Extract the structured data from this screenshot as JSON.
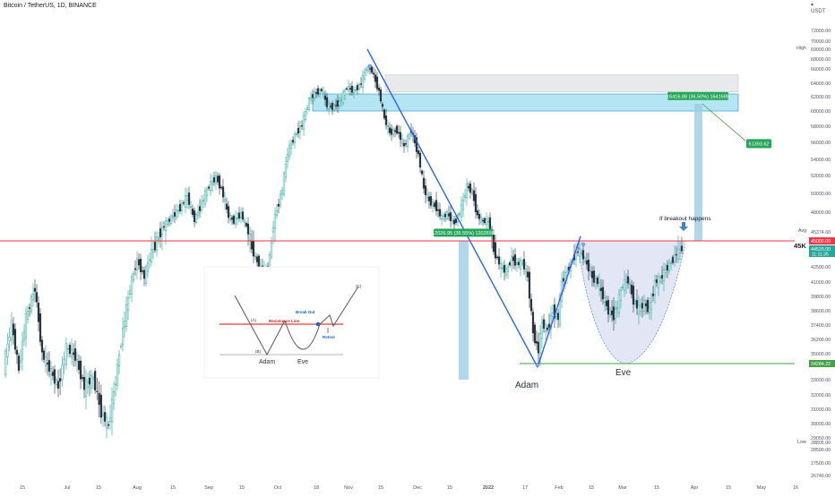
{
  "header": {
    "symbol": "Bitcoin / TetherUS, 1D, BINANCE",
    "unit_currency": "USDT",
    "unit_caret": "▾"
  },
  "colors": {
    "up": "#26a69a",
    "down": "#26303d",
    "resistance": "#f23645",
    "trend": "#2962ff",
    "zone_fill": "#a8dff0",
    "zone_stroke": "#3aa0c8",
    "grey_zone": "#d9dadc",
    "support": "#43a047",
    "target_label": "#26a65b",
    "cup_fill": "#d8def2"
  },
  "chart_data": {
    "type": "candlestick",
    "title": "Bitcoin / TetherUS, 1D, BINANCE",
    "y_unit": "USDT",
    "ylim": [
      26000,
      74000
    ],
    "y_ticks": [
      "72000.00",
      "70000.00",
      "69000.00",
      "68000.00",
      "66000.00",
      "64000.00",
      "62000.00",
      "60000.00",
      "58000.00",
      "56000.00",
      "54000.00",
      "52000.00",
      "50000.00",
      "48000.00",
      "45374.60",
      "45000.00",
      "44520.00",
      "42500.00",
      "41000.00",
      "39800.00",
      "38600.00",
      "37400.00",
      "36200.00",
      "35000.00",
      "34284.22",
      "33000.00",
      "32000.00",
      "31000.00",
      "30000.00",
      "29050.00",
      "28805.00",
      "28500.00",
      "27500.00",
      "26740.00"
    ],
    "y_tick_values": [
      72000,
      70000,
      69000,
      68000,
      66000,
      64000,
      62000,
      60000,
      58000,
      56000,
      54000,
      52000,
      50000,
      48000,
      45374.6,
      45000,
      44520,
      42500,
      41000,
      39800,
      38600,
      37400,
      36200,
      35000,
      34284.22,
      33000,
      32000,
      31000,
      30000,
      29050,
      28805,
      28500,
      27500,
      26740
    ],
    "x_ticks": [
      "15",
      "Jul",
      "15",
      "Aug",
      "15",
      "Sep",
      "15",
      "Oct",
      "18",
      "Nov",
      "15",
      "Dec",
      "15",
      "2022",
      "17",
      "Feb",
      "15",
      "Mar",
      "15",
      "Apr",
      "15",
      "May",
      "16"
    ],
    "x_tick_values": [
      25,
      75,
      110,
      153,
      193,
      233,
      270,
      310,
      353,
      389,
      425,
      466,
      502,
      545,
      586,
      624,
      660,
      695,
      733,
      775,
      813,
      850,
      888
    ],
    "axis_markers": {
      "high_label": "High",
      "low_label": "Low",
      "avg_label": "Avg",
      "level_45k": "45K",
      "countdown": "11:11:35"
    },
    "price_path": [
      [
        5,
        34000
      ],
      [
        14,
        37500
      ],
      [
        22,
        33800
      ],
      [
        30,
        38000
      ],
      [
        40,
        40500
      ],
      [
        48,
        35000
      ],
      [
        58,
        33600
      ],
      [
        66,
        32500
      ],
      [
        75,
        35500
      ],
      [
        85,
        34800
      ],
      [
        95,
        32500
      ],
      [
        105,
        33200
      ],
      [
        114,
        30800
      ],
      [
        122,
        29800
      ],
      [
        130,
        33000
      ],
      [
        138,
        37000
      ],
      [
        146,
        40500
      ],
      [
        154,
        43200
      ],
      [
        162,
        41500
      ],
      [
        170,
        44200
      ],
      [
        178,
        45200
      ],
      [
        186,
        46500
      ],
      [
        194,
        47500
      ],
      [
        202,
        48500
      ],
      [
        210,
        49700
      ],
      [
        218,
        47000
      ],
      [
        226,
        49000
      ],
      [
        234,
        50800
      ],
      [
        242,
        51800
      ],
      [
        248,
        50500
      ],
      [
        256,
        47500
      ],
      [
        262,
        46800
      ],
      [
        270,
        47800
      ],
      [
        278,
        45500
      ],
      [
        286,
        43500
      ],
      [
        294,
        42000
      ],
      [
        300,
        42300
      ],
      [
        308,
        47500
      ],
      [
        316,
        50500
      ],
      [
        322,
        54800
      ],
      [
        330,
        56800
      ],
      [
        338,
        58200
      ],
      [
        346,
        61500
      ],
      [
        352,
        62500
      ],
      [
        360,
        63000
      ],
      [
        366,
        60800
      ],
      [
        372,
        60500
      ],
      [
        380,
        61200
      ],
      [
        388,
        63400
      ],
      [
        396,
        62800
      ],
      [
        404,
        64000
      ],
      [
        410,
        66200
      ],
      [
        416,
        65800
      ],
      [
        424,
        62800
      ],
      [
        430,
        59000
      ],
      [
        436,
        57200
      ],
      [
        444,
        57500
      ],
      [
        452,
        55500
      ],
      [
        460,
        57500
      ],
      [
        468,
        54500
      ],
      [
        474,
        50500
      ],
      [
        480,
        49200
      ],
      [
        488,
        48500
      ],
      [
        494,
        47200
      ],
      [
        500,
        47800
      ],
      [
        508,
        46500
      ],
      [
        516,
        48400
      ],
      [
        522,
        50800
      ],
      [
        528,
        50200
      ],
      [
        534,
        47500
      ],
      [
        540,
        46800
      ],
      [
        546,
        46800
      ],
      [
        552,
        44300
      ],
      [
        560,
        42500
      ],
      [
        566,
        42000
      ],
      [
        572,
        43500
      ],
      [
        578,
        42800
      ],
      [
        584,
        43000
      ],
      [
        590,
        41500
      ],
      [
        596,
        36800
      ],
      [
        602,
        35200
      ],
      [
        606,
        37500
      ],
      [
        612,
        37000
      ],
      [
        618,
        38500
      ],
      [
        624,
        38000
      ],
      [
        628,
        41000
      ],
      [
        634,
        42000
      ],
      [
        640,
        43300
      ],
      [
        646,
        44300
      ],
      [
        650,
        44000
      ],
      [
        656,
        42800
      ],
      [
        662,
        41500
      ],
      [
        668,
        41000
      ],
      [
        674,
        39800
      ],
      [
        680,
        38600
      ],
      [
        686,
        38200
      ],
      [
        690,
        39000
      ],
      [
        696,
        40800
      ],
      [
        702,
        41200
      ],
      [
        708,
        39500
      ],
      [
        714,
        38700
      ],
      [
        720,
        39200
      ],
      [
        726,
        38600
      ],
      [
        732,
        41000
      ],
      [
        738,
        41300
      ],
      [
        744,
        42200
      ],
      [
        750,
        43000
      ],
      [
        756,
        44000
      ],
      [
        762,
        44500
      ]
    ],
    "annotations": {
      "breakout_text": "If breakout happens",
      "target_box": "16416.88 (36.50%) 1641688",
      "move_box": "12026.95 (36.55%) 1202695",
      "target_price": "61393.62",
      "adam": "Adam",
      "eve": "Eve"
    },
    "levels": {
      "resistance": 45000,
      "support": 34284.22,
      "blue_zone": [
        60000,
        62400
      ],
      "grey_zone": [
        62700,
        65200
      ]
    }
  },
  "inset": {
    "resistance_line": "Resistance Line",
    "break_out": "Break Out",
    "retest": "Retest",
    "point_a": "(A)",
    "point_b": "(B)",
    "point_c": "(C)",
    "adam": "Adam",
    "eve": "Eve"
  }
}
